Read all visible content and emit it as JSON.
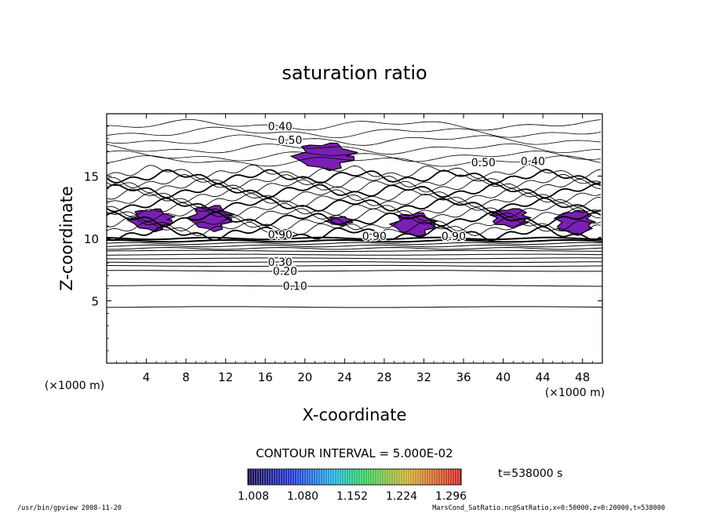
{
  "chart_data": {
    "type": "contour",
    "title": "saturation ratio",
    "xlabel": "X-coordinate",
    "ylabel": "Z-coordinate",
    "x_unit": "(×1000 m)",
    "z_unit": "(×1000 m)",
    "xlim": [
      0,
      50
    ],
    "ylim": [
      0,
      20
    ],
    "x_ticks": [
      "4",
      "8",
      "12",
      "16",
      "20",
      "24",
      "28",
      "32",
      "36",
      "40",
      "44",
      "48"
    ],
    "y_ticks": [
      "5",
      "10",
      "15"
    ],
    "contour_interval_text": "CONTOUR INTERVAL = 5.000E-02",
    "time_label": "t=538000 s",
    "contour_labels": [
      {
        "text": "0.10",
        "x": 19,
        "z": 6.2
      },
      {
        "text": "0.20",
        "x": 18,
        "z": 7.4
      },
      {
        "text": "0.30",
        "x": 17.5,
        "z": 8.1
      },
      {
        "text": "0.40",
        "x": 17.5,
        "z": 19.0
      },
      {
        "text": "0.50",
        "x": 18.5,
        "z": 17.9
      },
      {
        "text": "0.50",
        "x": 38,
        "z": 16.1
      },
      {
        "text": "0.40",
        "x": 43,
        "z": 16.2
      },
      {
        "text": "0.90",
        "x": 35,
        "z": 10.2
      },
      {
        "text": "0.90",
        "x": 27,
        "z": 10.2
      },
      {
        "text": "0.90",
        "x": 17.5,
        "z": 10.3
      }
    ],
    "horizontal_levels_z": [
      4.5,
      6.2,
      7.4,
      7.8,
      8.1,
      8.4,
      8.7,
      9.0,
      9.2,
      9.4,
      9.6,
      9.8,
      10.0
    ],
    "upper_levels_z": [
      16.2,
      16.6,
      17.2,
      17.9,
      18.5,
      19.1
    ],
    "shaded_regions": [
      {
        "x": [
          18.5,
          25.5
        ],
        "z": [
          15.4,
          17.8
        ]
      },
      {
        "x": [
          2,
          7
        ],
        "z": [
          10.5,
          12.5
        ]
      },
      {
        "x": [
          8,
          13
        ],
        "z": [
          10.5,
          12.8
        ]
      },
      {
        "x": [
          22,
          25
        ],
        "z": [
          11,
          11.8
        ]
      },
      {
        "x": [
          28.5,
          33.5
        ],
        "z": [
          10.1,
          12.2
        ]
      },
      {
        "x": [
          38.5,
          43
        ],
        "z": [
          10.8,
          12.5
        ]
      },
      {
        "x": [
          45,
          49.5
        ],
        "z": [
          10.2,
          12.4
        ]
      }
    ],
    "colorbar": {
      "tick_labels": [
        "1.008",
        "1.080",
        "1.152",
        "1.224",
        "1.296"
      ],
      "fill_color": "#7a1fb3"
    }
  },
  "footer": {
    "left": "/usr/bin/gpview   2008-11-20",
    "right": "MarsCond_SatRatio.nc@SatRatio,x=0:50000,z=0:20000,t=538000"
  }
}
